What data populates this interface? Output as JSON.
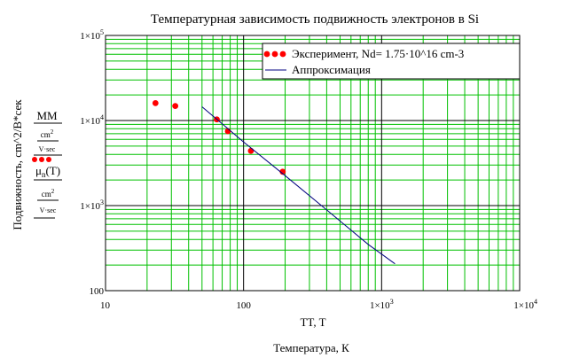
{
  "chart_data": {
    "type": "scatter",
    "title": "Температурная зависимость подвижность электронов в Si",
    "xlabel": "Температура, К",
    "xvar": "TT, T",
    "ylabel": "Подвижность, cm^2/В*сек",
    "xscale": "log",
    "yscale": "log",
    "xlim": [
      10,
      10000
    ],
    "ylim": [
      100,
      100000
    ],
    "grid": true,
    "legend_position": "top-right",
    "x_ticks": [
      {
        "value": 10,
        "label": "10"
      },
      {
        "value": 100,
        "label": "100"
      },
      {
        "value": 1000,
        "label": "1×10",
        "sup": "3"
      },
      {
        "value": 10000,
        "label": "1×10",
        "sup": "4"
      }
    ],
    "y_ticks": [
      {
        "value": 100,
        "label": "100"
      },
      {
        "value": 1000,
        "label": "1×10",
        "sup": "3"
      },
      {
        "value": 10000,
        "label": "1×10",
        "sup": "4"
      },
      {
        "value": 100000,
        "label": "1×10",
        "sup": "5"
      }
    ],
    "series": [
      {
        "name": "Эксперимент, Nd= 1.75·10^16 cm-3",
        "mode": "markers",
        "color": "#ff0000",
        "x": [
          23,
          32,
          64,
          77,
          113,
          192
        ],
        "y": [
          16000,
          14800,
          10300,
          7500,
          4400,
          2500
        ]
      },
      {
        "name": "Аппроксимация",
        "mode": "line",
        "color": "#000080",
        "x": [
          50,
          100,
          200,
          400,
          800,
          1250
        ],
        "y": [
          14500,
          5600,
          2250,
          890,
          350,
          207
        ]
      }
    ],
    "y_expression": {
      "upper_num": "MM",
      "upper_den_num": "cm",
      "upper_den_num_sup": "2",
      "upper_den_den": "V·sec",
      "lower_num": "μ",
      "lower_num_sub": "n",
      "lower_num_tail": "(T)",
      "lower_den_num": "cm",
      "lower_den_num_sup": "2",
      "lower_den_den": "V·sec"
    },
    "colors": {
      "grid_major": "#000000",
      "grid_minor": "#00c000",
      "axes": "#000000"
    }
  }
}
